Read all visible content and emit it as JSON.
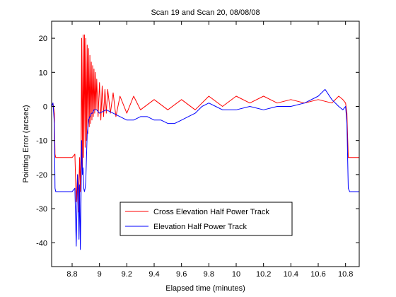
{
  "chart_data": {
    "type": "line",
    "title": "Scan 19 and Scan 20, 08/08/08",
    "xlabel": "Elapsed time (minutes)",
    "ylabel": "Pointing Error (arcsec)",
    "xlim": [
      8.65,
      10.9
    ],
    "ylim": [
      -47,
      25
    ],
    "xticks": [
      8.8,
      9,
      9.2,
      9.4,
      9.6,
      9.8,
      10,
      10.2,
      10.4,
      10.6,
      10.8
    ],
    "xtick_labels": [
      "8.8",
      "9",
      "9.2",
      "9.4",
      "9.6",
      "9.8",
      "10",
      "10.2",
      "10.4",
      "10.6",
      "10.8"
    ],
    "yticks": [
      20,
      10,
      0,
      -10,
      -20,
      -30,
      -40
    ],
    "ytick_labels": [
      "20",
      "10",
      "0",
      "-10",
      "-20",
      "-30",
      "-40"
    ],
    "grid": false,
    "legend_position": "lower-center",
    "series": [
      {
        "name": "Cross Elevation Half Power Track",
        "color": "#ff0000",
        "x": [
          8.65,
          8.66,
          8.67,
          8.675,
          8.68,
          8.7,
          8.75,
          8.8,
          8.82,
          8.83,
          8.84,
          8.845,
          8.85,
          8.855,
          8.86,
          8.865,
          8.87,
          8.875,
          8.88,
          8.885,
          8.89,
          8.895,
          8.9,
          8.905,
          8.91,
          8.915,
          8.92,
          8.925,
          8.93,
          8.935,
          8.94,
          8.945,
          8.95,
          8.955,
          8.96,
          8.965,
          8.97,
          8.975,
          8.98,
          8.99,
          9.0,
          9.01,
          9.02,
          9.03,
          9.04,
          9.05,
          9.06,
          9.08,
          9.1,
          9.12,
          9.15,
          9.2,
          9.25,
          9.3,
          9.4,
          9.5,
          9.6,
          9.7,
          9.8,
          9.9,
          10.0,
          10.1,
          10.2,
          10.3,
          10.4,
          10.5,
          10.6,
          10.7,
          10.75,
          10.78,
          10.8,
          10.81,
          10.815,
          10.82,
          10.83,
          10.9
        ],
        "y": [
          0,
          1,
          -2,
          -14,
          -15,
          -15,
          -15,
          -15,
          -14,
          -28,
          -20,
          -31,
          -22,
          -15,
          -25,
          -12,
          20,
          -18,
          21,
          -15,
          21,
          -12,
          20,
          -10,
          18,
          -8,
          17,
          -6,
          15,
          -5,
          13,
          -4,
          12,
          -3,
          11,
          -2,
          10,
          -1,
          8,
          -3,
          7,
          -4,
          6,
          -3,
          5,
          -2,
          5,
          -2,
          4,
          -3,
          3,
          -2,
          3,
          -1,
          2,
          -1,
          2,
          -1,
          3,
          0,
          3,
          1,
          3,
          1,
          2,
          1,
          2,
          1,
          3,
          2,
          1,
          -2,
          -9,
          -15,
          -15,
          -15
        ]
      },
      {
        "name": "Elevation Half Power Track",
        "color": "#0000ff",
        "x": [
          8.65,
          8.66,
          8.67,
          8.675,
          8.68,
          8.7,
          8.75,
          8.8,
          8.82,
          8.83,
          8.84,
          8.845,
          8.85,
          8.855,
          8.86,
          8.865,
          8.87,
          8.875,
          8.88,
          8.885,
          8.89,
          8.895,
          8.9,
          8.91,
          8.92,
          8.93,
          8.94,
          8.95,
          8.96,
          8.98,
          9.0,
          9.05,
          9.1,
          9.15,
          9.2,
          9.25,
          9.3,
          9.35,
          9.4,
          9.45,
          9.5,
          9.55,
          9.6,
          9.65,
          9.7,
          9.75,
          9.8,
          9.85,
          9.9,
          9.95,
          10.0,
          10.1,
          10.2,
          10.3,
          10.4,
          10.5,
          10.6,
          10.65,
          10.7,
          10.75,
          10.78,
          10.8,
          10.81,
          10.815,
          10.82,
          10.83,
          10.9
        ],
        "y": [
          0,
          1,
          -5,
          -24,
          -25,
          -25,
          -25,
          -25,
          -24,
          -41,
          -20,
          -25,
          -39,
          -23,
          -42,
          -27,
          -10,
          -20,
          -18,
          -24,
          -25,
          -24,
          -22,
          -8,
          -4,
          -3,
          -2,
          -2,
          -1,
          -1,
          -2,
          -1,
          -2,
          -3,
          -4,
          -4,
          -3,
          -3,
          -4,
          -4,
          -5,
          -5,
          -4,
          -3,
          -2,
          0,
          1,
          0,
          -1,
          -1,
          -1,
          0,
          -1,
          0,
          0,
          1,
          3,
          5,
          2,
          0,
          -1,
          0,
          -5,
          -15,
          -24,
          -25,
          -25
        ]
      }
    ]
  }
}
